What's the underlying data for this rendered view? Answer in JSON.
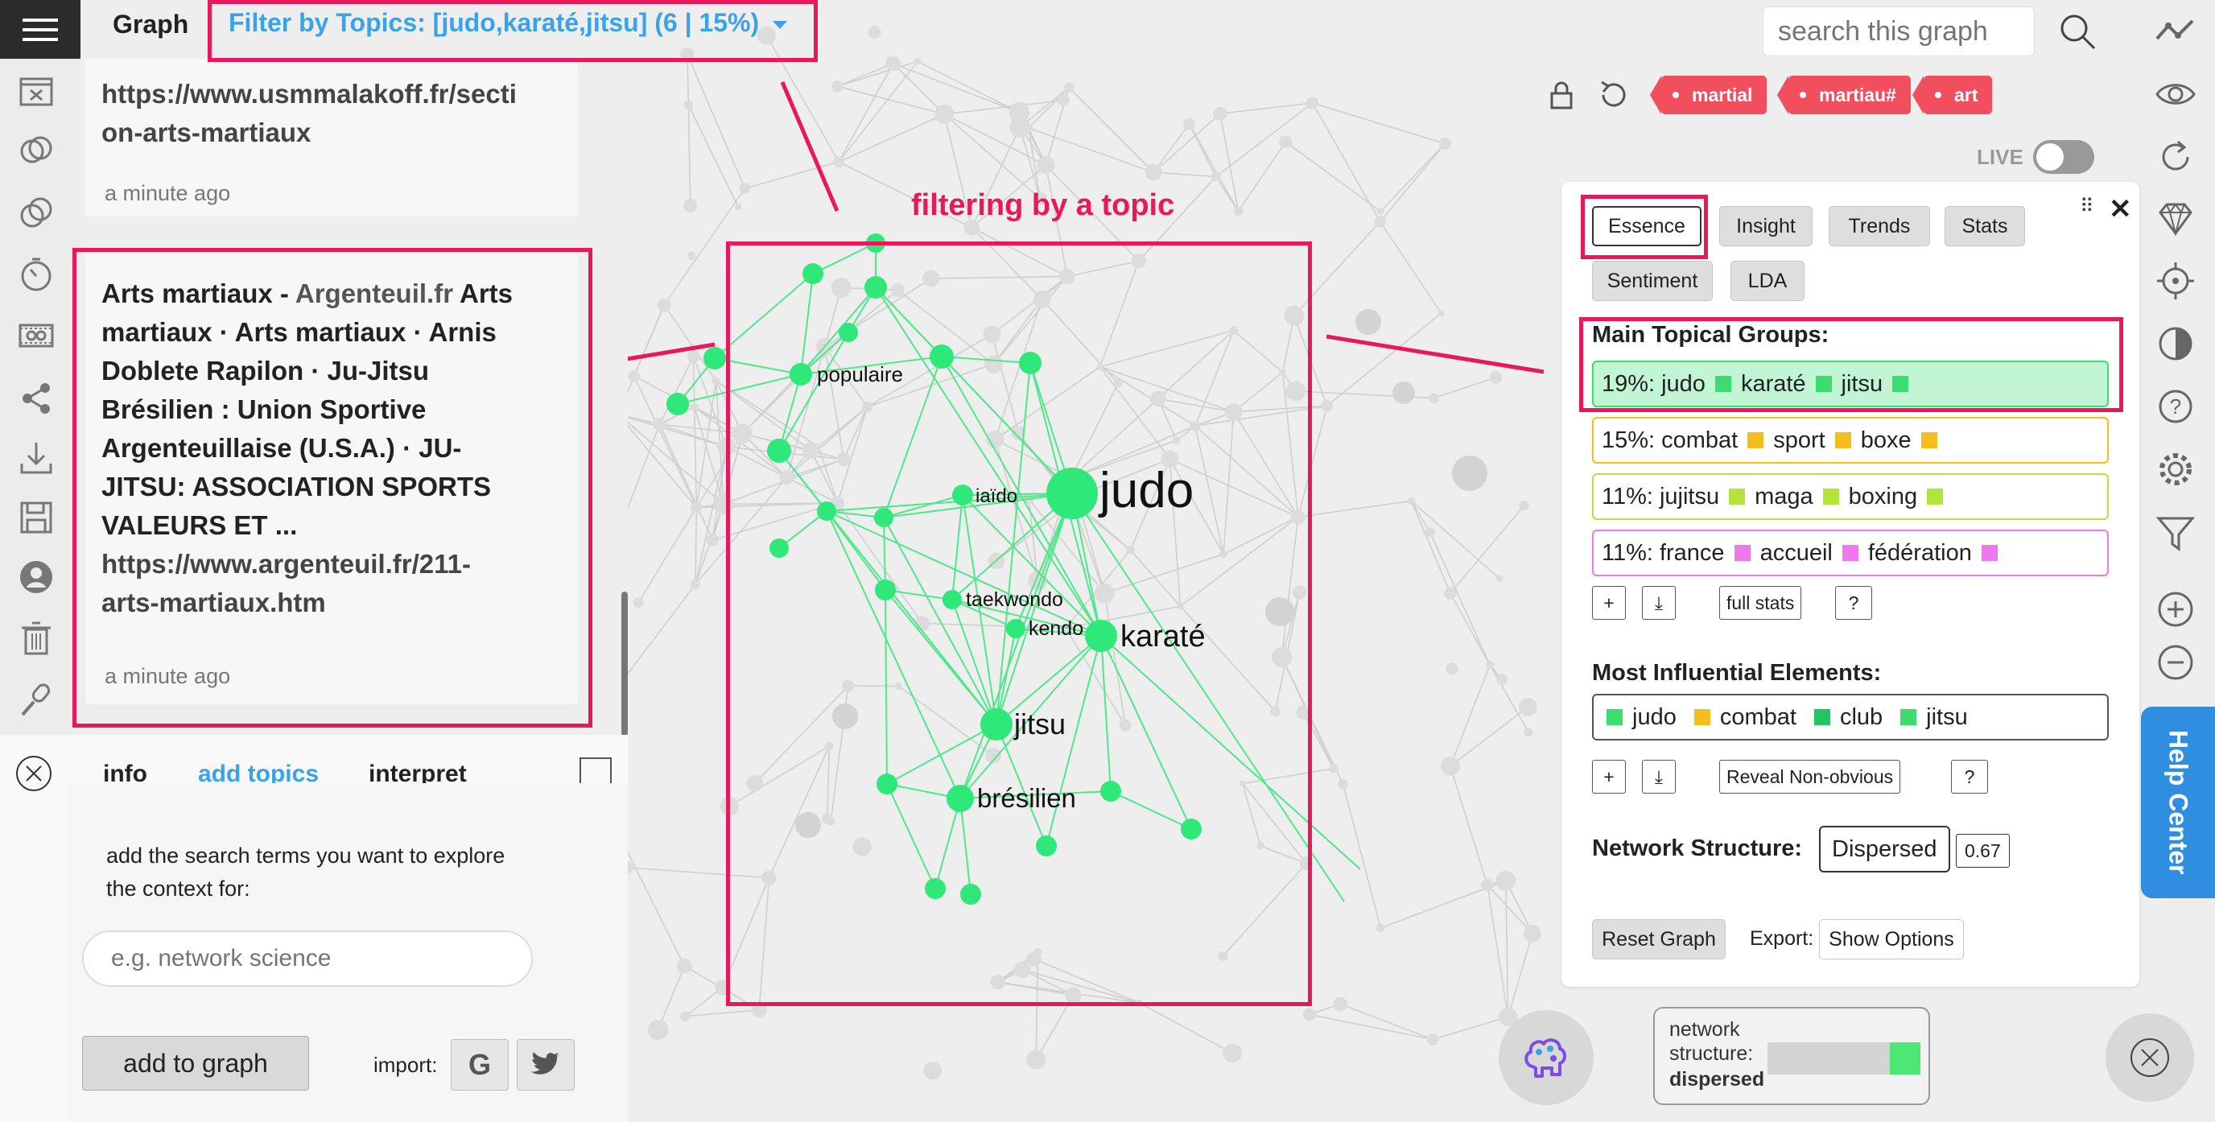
{
  "header": {
    "title": "Graph",
    "filter_label": "Filter by Topics: [judo,karaté,jitsu] (6 | 15%)",
    "search_placeholder": "search this graph"
  },
  "tags": [
    "martial",
    "martiau#",
    "art"
  ],
  "live_label": "LIVE",
  "annotation": {
    "label": "filtering by a topic"
  },
  "cards": [
    {
      "lines": [
        "https://www.usmmalakoff.fr/secti",
        "on-arts-martiaux"
      ],
      "time": "a minute ago"
    },
    {
      "title_prefix": "Arts martiaux - ",
      "source": "Argenteuil.fr",
      "lines": [
        " Arts",
        "martiaux · Arts martiaux · Arnis",
        "Doblete Rapilon · Ju-Jitsu",
        "Brésilien : Union Sportive",
        "Argenteuillaise (U.S.A.) · JU-",
        "JITSU: ASSOCIATION SPORTS",
        "VALEURS ET ..."
      ],
      "link_lines": [
        "https://www.argenteuil.fr/211-",
        "arts-martiaux.htm"
      ],
      "time": "a minute ago"
    }
  ],
  "bottom_panel": {
    "tabs": [
      "info",
      "add topics",
      "interpret"
    ],
    "instruction": "add the search terms you want to explore the context for:",
    "input_placeholder": "e.g. network science",
    "add_button": "add to graph",
    "import_label": "import:"
  },
  "right_panel": {
    "tabs": [
      "Essence",
      "Insight",
      "Trends",
      "Stats",
      "Sentiment",
      "LDA"
    ],
    "main_groups_title": "Main Topical Groups:",
    "groups": [
      {
        "pct": "19%:",
        "terms": [
          "judo",
          "karaté",
          "jitsu"
        ],
        "color": "#3ddc6e",
        "fill": "#c1f5d4"
      },
      {
        "pct": "15%:",
        "terms": [
          "combat",
          "sport",
          "boxe"
        ],
        "color": "#f5be1e",
        "fill": "#ffffff"
      },
      {
        "pct": "11%:",
        "terms": [
          "jujitsu",
          "maga",
          "boxing"
        ],
        "color": "#b4e33a",
        "fill": "#ffffff"
      },
      {
        "pct": "11%:",
        "terms": [
          "france",
          "accueil",
          "fédération"
        ],
        "color": "#ee78ee",
        "fill": "#ffffff"
      }
    ],
    "group_buttons": [
      "+",
      "⤓",
      "full stats",
      "?"
    ],
    "influential_title": "Most Influential Elements:",
    "influential": [
      {
        "term": "judo",
        "color": "#3ddc6e"
      },
      {
        "term": "combat",
        "color": "#f5be1e"
      },
      {
        "term": "club",
        "color": "#22c55e"
      },
      {
        "term": "jitsu",
        "color": "#3ddc6e"
      }
    ],
    "influential_buttons": [
      "+",
      "⤓",
      "Reveal Non-obvious",
      "?"
    ],
    "structure_title": "Network Structure:",
    "structure_value": "Dispersed",
    "structure_number": "0.67",
    "reset_button": "Reset Graph",
    "export_label": "Export:",
    "show_options": "Show Options"
  },
  "help_center": "Help Center",
  "mini_status": {
    "line1": "network",
    "line2": "structure:",
    "line3": "dispersed",
    "level": 0.2
  },
  "graph_labels": [
    {
      "text": "judo"
    },
    {
      "text": "karaté"
    },
    {
      "text": "jitsu"
    },
    {
      "text": "brésilien"
    },
    {
      "text": "populaire"
    },
    {
      "text": "iaïdo"
    },
    {
      "text": "taekwondo"
    },
    {
      "text": "kendo"
    }
  ],
  "colors": {
    "accent": "#3aa3e8",
    "node": "#2ee87a",
    "annotation": "#e8195a",
    "tag": "#f14e5e"
  }
}
